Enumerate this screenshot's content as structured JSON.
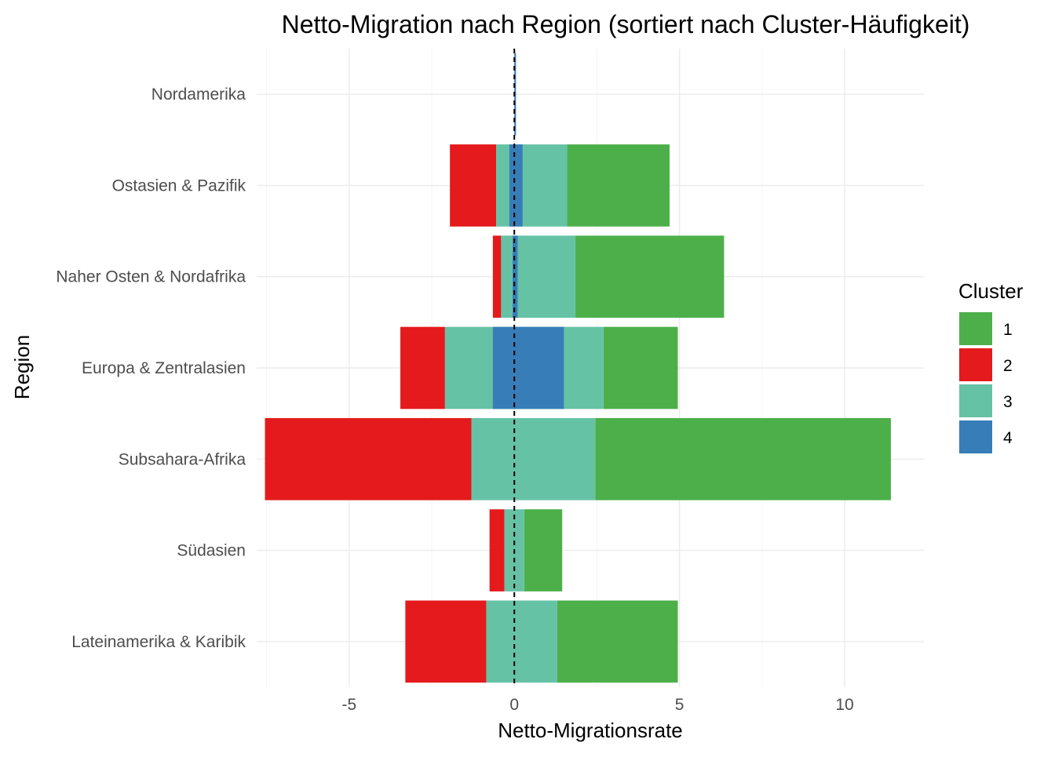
{
  "chart_data": {
    "type": "bar",
    "orientation": "horizontal",
    "stacking": "diverging",
    "title": "Netto-Migration nach Region (sortiert nach Cluster-Häufigkeit)",
    "xlabel": "Netto-Migrationsrate",
    "ylabel": "Region",
    "categories": [
      "Nordamerika",
      "Ostasien & Pazifik",
      "Naher Osten & Nordafrika",
      "Europa & Zentralasien",
      "Subsahara-Afrika",
      "Südasien",
      "Lateinamerika & Karibik"
    ],
    "xlim": [
      -7.8,
      12.4
    ],
    "x_ticks": [
      -5,
      0,
      5,
      10
    ],
    "x_tick_labels": [
      "-5",
      "0",
      "5",
      "10"
    ],
    "reference_line": {
      "x": 0,
      "style": "dashed"
    },
    "legend": {
      "title": "Cluster",
      "position": "right"
    },
    "grid": true,
    "series": [
      {
        "name": "1",
        "color": "#4DAF4A",
        "segments": [
          [
            0,
            0
          ],
          [
            1.6,
            4.7
          ],
          [
            1.85,
            6.35
          ],
          [
            2.7,
            4.95
          ],
          [
            2.45,
            11.4
          ],
          [
            0.3,
            1.45
          ],
          [
            1.3,
            4.95
          ]
        ]
      },
      {
        "name": "2",
        "color": "#E41A1C",
        "segments": [
          [
            0,
            0
          ],
          [
            -1.95,
            -0.55
          ],
          [
            -0.65,
            -0.4
          ],
          [
            -3.45,
            -2.1
          ],
          [
            -7.55,
            -1.3
          ],
          [
            -0.75,
            -0.3
          ],
          [
            -3.3,
            -0.85
          ]
        ]
      },
      {
        "name": "3",
        "color": "#66C2A5",
        "segments": [
          [
            0,
            0
          ],
          [
            -0.55,
            1.6
          ],
          [
            -0.4,
            1.85
          ],
          [
            -2.1,
            2.7
          ],
          [
            -1.3,
            2.45
          ],
          [
            -0.3,
            0.3
          ],
          [
            -0.85,
            1.3
          ]
        ]
      },
      {
        "name": "4",
        "color": "#377EB8",
        "segments": [
          [
            0,
            0.05
          ],
          [
            -0.15,
            0.25
          ],
          [
            -0.05,
            0.1
          ],
          [
            -0.65,
            1.5
          ],
          [
            0,
            0
          ],
          [
            0,
            0
          ],
          [
            0,
            0
          ]
        ]
      }
    ]
  }
}
